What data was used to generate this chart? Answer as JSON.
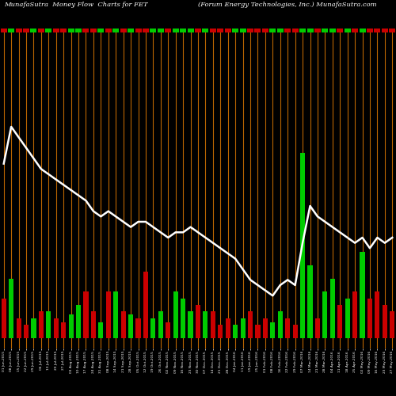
{
  "title_left": "MunafaSutra  Money Flow  Charts for FET",
  "title_right": "(Forum Energy Technologies, Inc.) MunafaSutra.com",
  "background_color": "#000000",
  "bar_color_pos": "#00cc00",
  "bar_color_neg": "#cc0000",
  "line_color": "#ffffff",
  "vline_color": "#bb6600",
  "dates": [
    "01 Jun,2015",
    "08 Jun,2015",
    "15 Jun,2015",
    "22 Jun,2015",
    "29 Jun,2015",
    "06 Jul,2015",
    "13 Jul,2015",
    "20 Jul,2015",
    "27 Jul,2015",
    "03 Aug,2015",
    "10 Aug,2015",
    "17 Aug,2015",
    "24 Aug,2015",
    "31 Aug,2015",
    "08 Sep,2015",
    "14 Sep,2015",
    "21 Sep,2015",
    "28 Sep,2015",
    "05 Oct,2015",
    "12 Oct,2015",
    "19 Oct,2015",
    "26 Oct,2015",
    "02 Nov,2015",
    "09 Nov,2015",
    "16 Nov,2015",
    "23 Nov,2015",
    "30 Nov,2015",
    "07 Dec,2015",
    "14 Dec,2015",
    "21 Dec,2015",
    "28 Dec,2015",
    "04 Jan,2016",
    "11 Jan,2016",
    "19 Jan,2016",
    "25 Jan,2016",
    "01 Feb,2016",
    "08 Feb,2016",
    "16 Feb,2016",
    "22 Feb,2016",
    "29 Feb,2016",
    "07 Mar,2016",
    "14 Mar,2016",
    "21 Mar,2016",
    "28 Mar,2016",
    "04 Apr,2016",
    "11 Apr,2016",
    "18 Apr,2016",
    "25 Apr,2016",
    "02 May,2016",
    "09 May,2016",
    "16 May,2016",
    "23 May,2016",
    "27 May,2016"
  ],
  "money_flow": [
    -3.0,
    4.5,
    -1.5,
    -1.0,
    1.5,
    -2.0,
    2.0,
    -1.5,
    -1.2,
    1.8,
    2.5,
    -3.5,
    -2.0,
    1.2,
    -3.5,
    3.5,
    -2.0,
    1.8,
    -1.5,
    -5.0,
    1.5,
    2.0,
    -1.2,
    3.5,
    3.0,
    2.0,
    -2.5,
    2.0,
    -2.0,
    -1.0,
    -1.5,
    1.0,
    1.5,
    -2.0,
    -1.0,
    -1.5,
    1.2,
    2.0,
    -1.5,
    -1.0,
    14.0,
    5.5,
    -1.5,
    3.5,
    4.5,
    -2.5,
    3.0,
    -3.5,
    6.5,
    -3.0,
    -3.5,
    -2.5,
    -2.0
  ],
  "price_line": [
    75,
    82,
    80,
    78,
    76,
    74,
    73,
    72,
    71,
    70,
    69,
    68,
    66,
    65,
    66,
    65,
    64,
    63,
    64,
    64,
    63,
    62,
    61,
    62,
    62,
    63,
    62,
    61,
    60,
    59,
    58,
    57,
    55,
    53,
    52,
    51,
    50,
    52,
    53,
    52,
    60,
    67,
    65,
    64,
    63,
    62,
    61,
    60,
    61,
    59,
    61,
    60,
    61
  ],
  "ylim_min": 40,
  "ylim_max": 100,
  "bar_baseline": 42,
  "bar_scale": 2.5
}
